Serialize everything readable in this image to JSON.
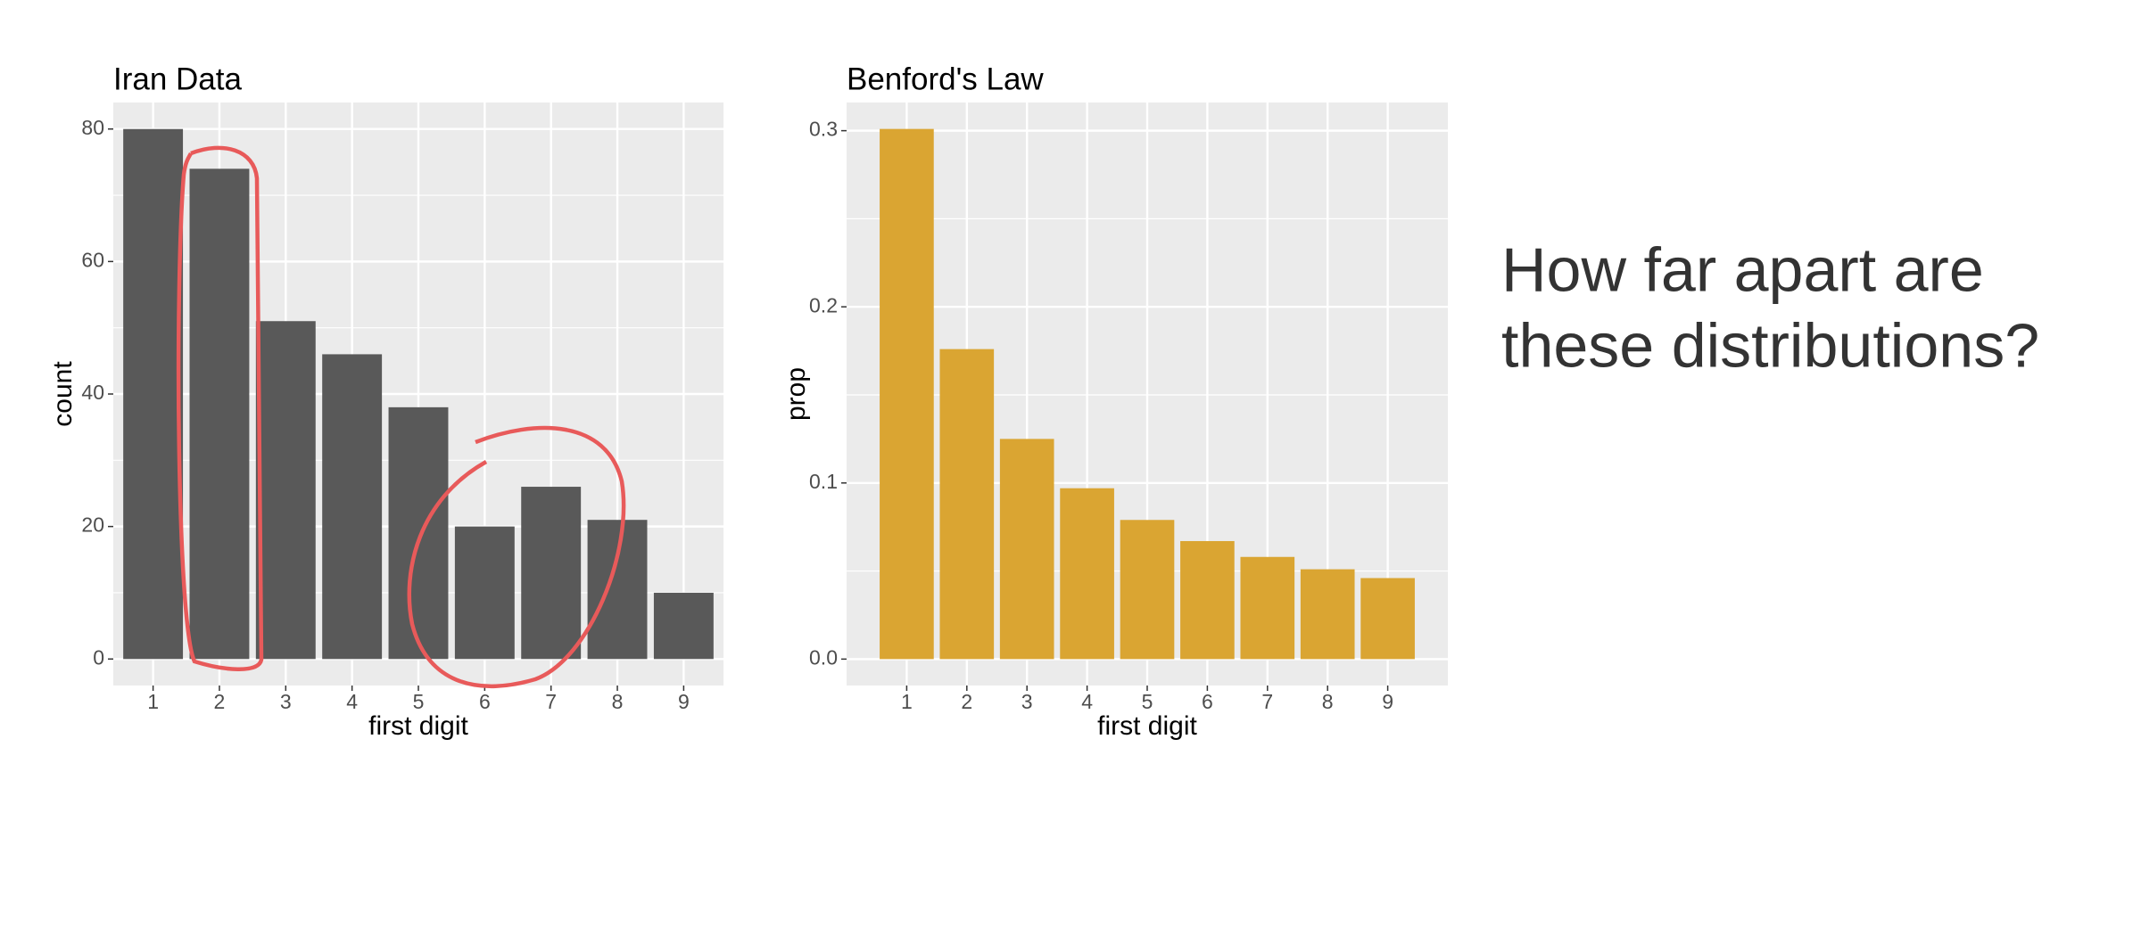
{
  "chart_data": [
    {
      "type": "bar",
      "title": "Iran Data",
      "categories": [
        "1",
        "2",
        "3",
        "4",
        "5",
        "6",
        "7",
        "8",
        "9"
      ],
      "values": [
        80,
        74,
        51,
        46,
        38,
        20,
        26,
        21,
        10
      ],
      "color": "#595959",
      "ylim": [
        -4,
        84
      ],
      "yticks": [
        0,
        20,
        40,
        60,
        80
      ],
      "xlabel": "first digit",
      "ylabel": "count",
      "grid": true
    },
    {
      "type": "bar",
      "title": "Benford's Law",
      "categories": [
        "1",
        "2",
        "3",
        "4",
        "5",
        "6",
        "7",
        "8",
        "9"
      ],
      "values": [
        0.301,
        0.176,
        0.125,
        0.097,
        0.079,
        0.067,
        0.058,
        0.051,
        0.046
      ],
      "color": "#daa532",
      "ylim": [
        -0.015,
        0.316
      ],
      "yticks": [
        {
          "value": 0,
          "label": "0.0"
        },
        0.1,
        0.2,
        0.3
      ],
      "xlabel": "first digit",
      "ylabel": "prop",
      "grid": true
    }
  ],
  "annotation": {
    "lines": [
      "How far apart are",
      "these distributions?"
    ]
  }
}
